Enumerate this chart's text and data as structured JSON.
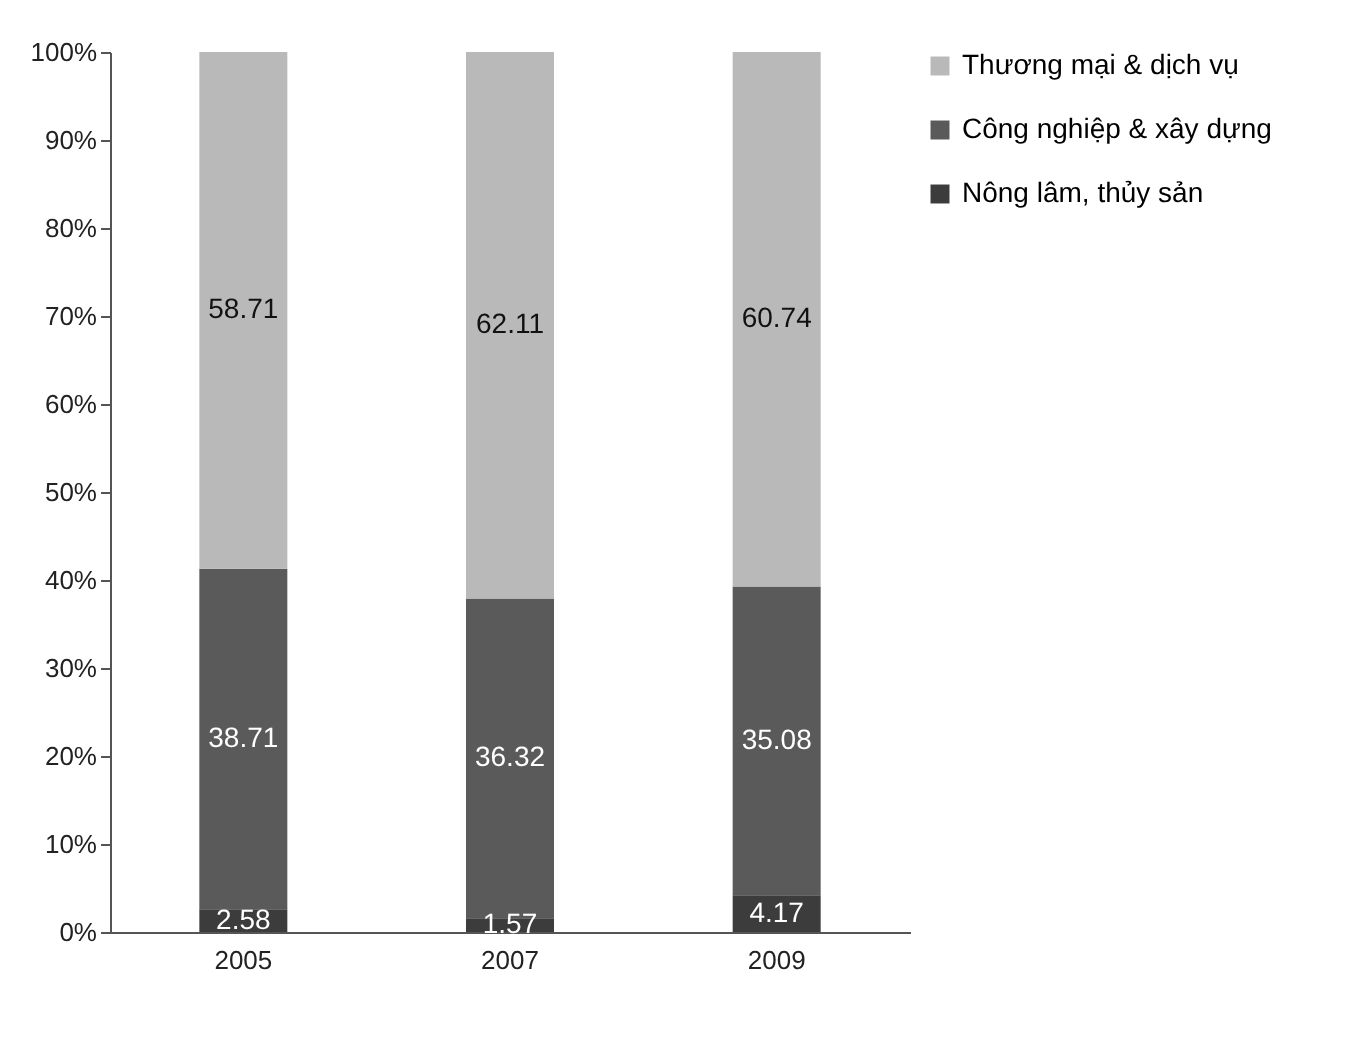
{
  "chart_data": {
    "type": "bar",
    "stacked": true,
    "categories": [
      "2005",
      "2007",
      "2009"
    ],
    "series": [
      {
        "name": "Nông lâm, thủy sản",
        "color": "#3c3c3c",
        "values": [
          2.58,
          1.57,
          4.17
        ]
      },
      {
        "name": "Công nghiệp & xây dựng",
        "color": "#5a5a5a",
        "values": [
          38.71,
          36.32,
          35.08
        ]
      },
      {
        "name": "Thương mại & dịch vụ",
        "color": "#b9b9b9",
        "values": [
          58.71,
          62.11,
          60.74
        ]
      }
    ],
    "ylim": [
      0,
      100
    ],
    "yticks": [
      {
        "value": 0,
        "label": "0%"
      },
      {
        "value": 10,
        "label": "10%"
      },
      {
        "value": 20,
        "label": "20%"
      },
      {
        "value": 30,
        "label": "30%"
      },
      {
        "value": 40,
        "label": "40%"
      },
      {
        "value": 50,
        "label": "50%"
      },
      {
        "value": 60,
        "label": "60%"
      },
      {
        "value": 70,
        "label": "70%"
      },
      {
        "value": 80,
        "label": "80%"
      },
      {
        "value": 90,
        "label": "90%"
      },
      {
        "value": 100,
        "label": "100%"
      }
    ],
    "data_labels": true,
    "legend": "right"
  }
}
